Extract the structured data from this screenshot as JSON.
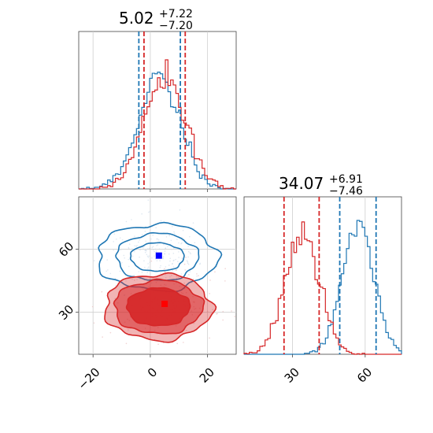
{
  "chart_data": {
    "type": "corner",
    "grid": true,
    "panels": {
      "hist_x": {
        "type": "histogram",
        "title": {
          "main": "5.02",
          "upper": "+7.22",
          "lower": "−7.20"
        },
        "xlim": [
          -25,
          30
        ],
        "series": [
          {
            "color": "#1f77b4",
            "mean": 3.0,
            "sd": 7.2,
            "quantile_lines": [
              -4.0,
              10.5
            ]
          },
          {
            "color": "#d62728",
            "mean": 5.0,
            "sd": 7.2,
            "quantile_lines": [
              -2.2,
              12.2
            ]
          }
        ]
      },
      "hist_y": {
        "type": "histogram",
        "title": {
          "main": "34.07",
          "upper": "+6.91",
          "lower": "−7.46"
        },
        "xlim": [
          10,
          75
        ],
        "xticks": [
          30,
          60
        ],
        "xtick_labels": [
          "30",
          "60"
        ],
        "series": [
          {
            "color": "#1f77b4",
            "mean": 57.0,
            "sd": 6.5,
            "quantile_lines": [
              49.5,
              64.5
            ]
          },
          {
            "color": "#d62728",
            "mean": 34.0,
            "sd": 7.0,
            "quantile_lines": [
              26.5,
              41.0
            ]
          }
        ]
      },
      "scatter_2d": {
        "type": "contour",
        "xlim": [
          -25,
          30
        ],
        "ylim": [
          10,
          85
        ],
        "xticks": [
          -20,
          0,
          20
        ],
        "xtick_labels": [
          "−20",
          "0",
          "20"
        ],
        "yticks": [
          30,
          60
        ],
        "ytick_labels": [
          "30",
          "60"
        ],
        "series": [
          {
            "color": "#1f77b4",
            "center": [
              3,
              57
            ],
            "marker_color": "#0000ff",
            "filled": false
          },
          {
            "color": "#d62728",
            "center": [
              5,
              34
            ],
            "marker_color": "#ff0000",
            "filled": true
          }
        ]
      }
    }
  }
}
